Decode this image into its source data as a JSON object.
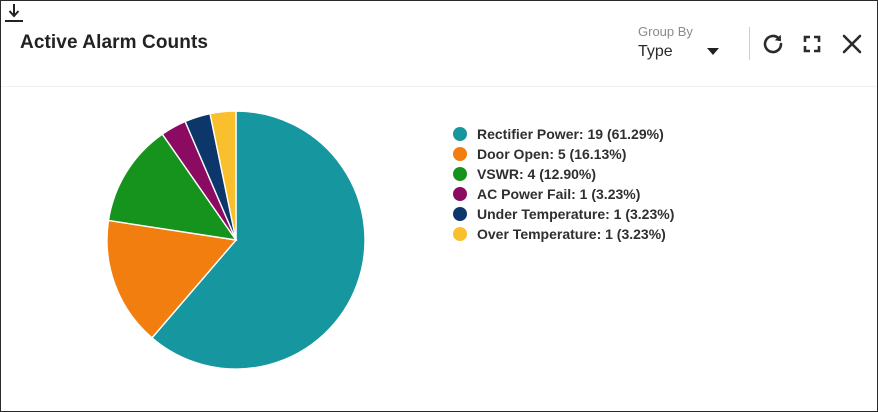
{
  "widget": {
    "title": "Active Alarm Counts",
    "group_by": {
      "label": "Group By",
      "value": "Type"
    },
    "icons": {
      "refresh": "refresh-icon",
      "expand": "expand-icon",
      "close": "close-icon",
      "download": "download-icon"
    }
  },
  "chart_data": {
    "type": "pie",
    "slices": [
      {
        "name": "Rectifier Power",
        "value": 19,
        "percent": 61.29,
        "color": "#16969f"
      },
      {
        "name": "Door Open",
        "value": 5,
        "percent": 16.13,
        "color": "#f27e0f"
      },
      {
        "name": "VSWR",
        "value": 4,
        "percent": 12.9,
        "color": "#16931d"
      },
      {
        "name": "AC Power Fail",
        "value": 1,
        "percent": 3.23,
        "color": "#8c0b62"
      },
      {
        "name": "Under Temperature",
        "value": 1,
        "percent": 3.23,
        "color": "#0d376b"
      },
      {
        "name": "Over Temperature",
        "value": 1,
        "percent": 3.23,
        "color": "#f9bf2c"
      }
    ],
    "legend_labels": [
      "Rectifier Power: 19 (61.29%)",
      "Door Open: 5 (16.13%)",
      "VSWR: 4 (12.90%)",
      "AC Power Fail: 1 (3.23%)",
      "Under Temperature: 1 (3.23%)",
      "Over Temperature: 1 (3.23%)"
    ],
    "legend_position": "right"
  }
}
